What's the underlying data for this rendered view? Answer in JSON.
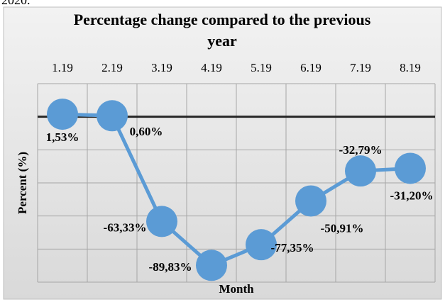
{
  "caption": "2020.",
  "chart_data": {
    "type": "line",
    "title": "Percentage change compared to the previous year",
    "x_label": "Month",
    "y_label": "Percent (%)",
    "categories": [
      "1.19",
      "2.19",
      "3.19",
      "4.19",
      "5.19",
      "6.19",
      "7.19",
      "8.19"
    ],
    "series": [
      {
        "name": "Percentage change",
        "color": "#5b9bd5",
        "values": [
          1.53,
          0.6,
          -63.33,
          -89.83,
          -77.35,
          -50.91,
          -32.79,
          -31.2
        ],
        "value_labels": [
          "1,53%",
          "0,60%",
          "-63,33%",
          "-89,83%",
          "-77,35%",
          "-50,91%",
          "-32,79%",
          "-31,20%"
        ]
      }
    ],
    "ylim": [
      -100,
      20
    ],
    "yticks": [
      -100,
      -80,
      -60,
      -40,
      -20,
      0,
      20
    ],
    "grid": true
  }
}
